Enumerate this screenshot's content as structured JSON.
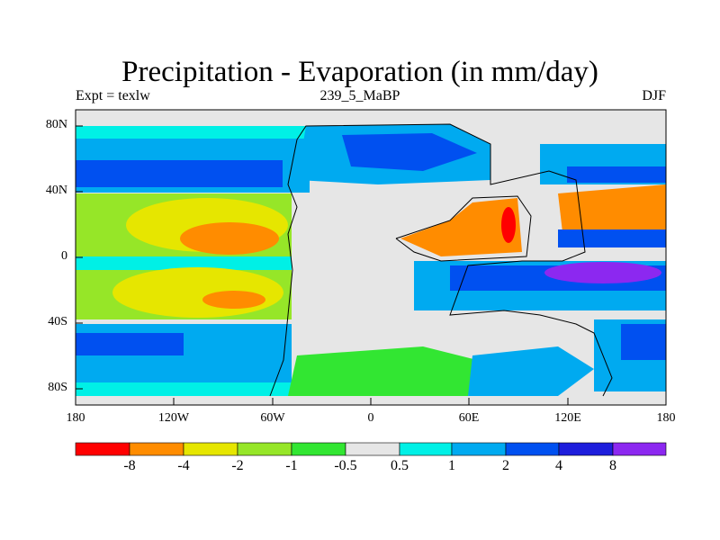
{
  "title": "Precipitation - Evaporation (in mm/day)",
  "subtitle_left": "Expt = texlw",
  "subtitle_center": "239_5_MaBP",
  "subtitle_right": "DJF",
  "lat_ticks": [
    "80N",
    "40N",
    "0",
    "40S",
    "80S"
  ],
  "lon_ticks": [
    "180",
    "120W",
    "60W",
    "0",
    "60E",
    "120E",
    "180"
  ],
  "colorbar": {
    "colors": [
      "#ff0000",
      "#ff8c00",
      "#e6e600",
      "#96e628",
      "#32e632",
      "#e6e6e6",
      "#00f0e6",
      "#00aaf0",
      "#0050f0",
      "#1e1edc",
      "#8c28f0"
    ],
    "labels": [
      "-8",
      "-4",
      "-2",
      "-1",
      "-0.5",
      "0.5",
      "1",
      "2",
      "4",
      "8"
    ]
  },
  "colors": {
    "frame": "#000000",
    "coast": "#000000"
  }
}
